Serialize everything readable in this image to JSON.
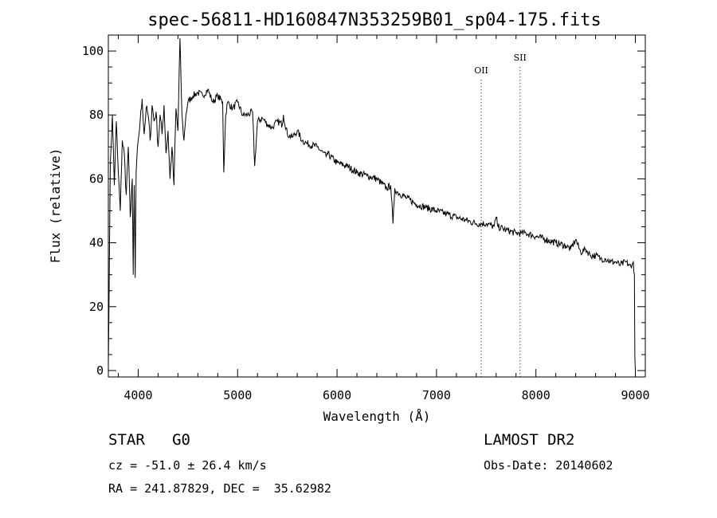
{
  "chart_data": {
    "type": "line",
    "title": "spec-56811-HD160847N353259B01_sp04-175.fits",
    "xlabel": "Wavelength (Å)",
    "ylabel": "Flux (relative)",
    "xlim": [
      3700,
      9100
    ],
    "ylim": [
      -2,
      105
    ],
    "xticks": [
      4000,
      5000,
      6000,
      7000,
      8000,
      9000
    ],
    "yticks": [
      0,
      20,
      40,
      60,
      80,
      100
    ],
    "grid": false,
    "series": [
      {
        "x": [
          3700,
          3720,
          3740,
          3760,
          3780,
          3800,
          3820,
          3840,
          3860,
          3880,
          3900,
          3920,
          3940,
          3950,
          3960,
          3970,
          3980,
          4000,
          4020,
          4040,
          4060,
          4080,
          4100,
          4120,
          4140,
          4160,
          4180,
          4200,
          4220,
          4240,
          4260,
          4280,
          4300,
          4320,
          4340,
          4360,
          4380,
          4400,
          4420,
          4440,
          4460,
          4480,
          4500,
          4550,
          4600,
          4650,
          4700,
          4750,
          4800,
          4850,
          4861,
          4880,
          4900,
          4950,
          5000,
          5050,
          5100,
          5150,
          5172,
          5200,
          5250,
          5300,
          5350,
          5400,
          5450,
          5460,
          5500,
          5550,
          5600,
          5650,
          5700,
          5800,
          5890,
          5900,
          6000,
          6100,
          6200,
          6300,
          6400,
          6500,
          6540,
          6563,
          6580,
          6600,
          6700,
          6800,
          6900,
          7000,
          7100,
          7200,
          7300,
          7400,
          7500,
          7580,
          7600,
          7620,
          7700,
          7800,
          7850,
          7900,
          8000,
          8100,
          8200,
          8300,
          8350,
          8400,
          8450,
          8500,
          8550,
          8600,
          8650,
          8700,
          8750,
          8800,
          8850,
          8900,
          8940,
          8960,
          8980,
          8990,
          8995,
          9000
        ],
        "values": [
          1,
          65,
          80,
          58,
          78,
          62,
          50,
          72,
          68,
          55,
          70,
          48,
          60,
          30,
          58,
          29,
          62,
          72,
          78,
          85,
          74,
          82,
          80,
          72,
          83,
          78,
          81,
          70,
          80,
          74,
          83,
          68,
          75,
          60,
          70,
          58,
          82,
          75,
          104,
          80,
          72,
          80,
          84,
          86,
          87,
          86,
          88,
          84,
          86,
          84,
          62,
          80,
          84,
          82,
          84,
          80,
          80,
          81,
          64,
          78,
          79,
          77,
          76,
          78,
          77,
          80,
          74,
          73,
          75,
          72,
          71,
          70,
          67,
          68,
          65,
          64,
          62,
          61,
          60,
          57,
          58,
          46,
          57,
          56,
          54,
          52,
          51,
          50,
          49,
          48,
          47,
          46,
          46,
          45,
          48,
          45,
          44,
          43,
          43,
          43,
          42,
          41,
          40,
          39,
          38,
          41,
          37,
          38,
          36,
          36,
          35,
          35,
          34,
          34,
          33,
          34,
          33,
          32,
          34,
          30,
          4,
          0
        ]
      }
    ],
    "annotations": [
      {
        "label": "OII",
        "x": 7450,
        "y": 93
      },
      {
        "label": "SII",
        "x": 7840,
        "y": 97
      }
    ]
  },
  "info": {
    "class": "STAR   G0",
    "survey": "LAMOST DR2",
    "cz": "cz = -51.0 ± 26.4 km/s",
    "obs_date": "Obs-Date: 20140602",
    "radec": "RA = 241.87829, DEC =  35.62982"
  }
}
